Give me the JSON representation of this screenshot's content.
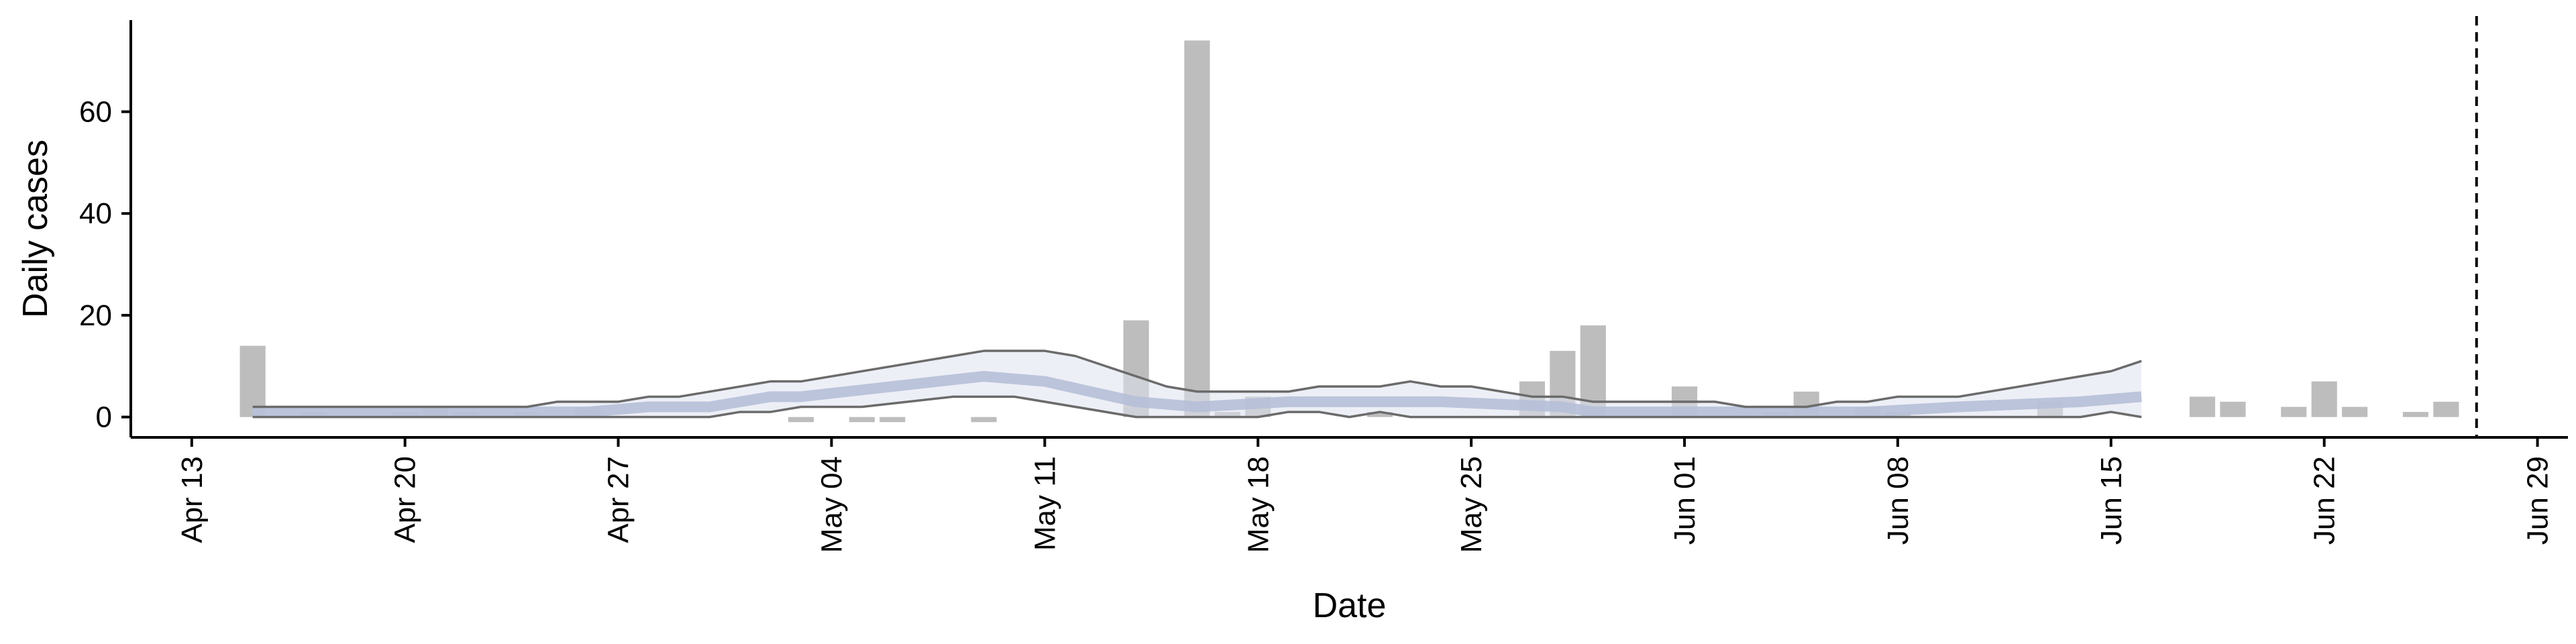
{
  "chart_data": {
    "type": "bar",
    "title": "",
    "xlabel": "Date",
    "ylabel": "Daily cases",
    "ylim": [
      -4,
      78
    ],
    "yticks": [
      0,
      20,
      40,
      60
    ],
    "xlim": [
      "2020-04-11",
      "2020-06-30"
    ],
    "xticks": [
      {
        "date": "2020-04-13",
        "label": "Apr 13"
      },
      {
        "date": "2020-04-20",
        "label": "Apr 20"
      },
      {
        "date": "2020-04-27",
        "label": "Apr 27"
      },
      {
        "date": "2020-05-04",
        "label": "May 04"
      },
      {
        "date": "2020-05-11",
        "label": "May 11"
      },
      {
        "date": "2020-05-18",
        "label": "May 18"
      },
      {
        "date": "2020-05-25",
        "label": "May 25"
      },
      {
        "date": "2020-06-01",
        "label": "Jun 01"
      },
      {
        "date": "2020-06-08",
        "label": "Jun 08"
      },
      {
        "date": "2020-06-15",
        "label": "Jun 15"
      },
      {
        "date": "2020-06-22",
        "label": "Jun 22"
      },
      {
        "date": "2020-06-29",
        "label": "Jun 29"
      }
    ],
    "bars": [
      {
        "x": "2020-04-15",
        "y": 14
      },
      {
        "x": "2020-04-17",
        "y": 1
      },
      {
        "x": "2020-04-20",
        "y": 1
      },
      {
        "x": "2020-04-21",
        "y": 2
      },
      {
        "x": "2020-04-22",
        "y": 1
      },
      {
        "x": "2020-04-24",
        "y": 1
      },
      {
        "x": "2020-04-26",
        "y": 2
      },
      {
        "x": "2020-05-03",
        "y": -1
      },
      {
        "x": "2020-05-05",
        "y": -1
      },
      {
        "x": "2020-05-06",
        "y": -1
      },
      {
        "x": "2020-05-09",
        "y": -1
      },
      {
        "x": "2020-05-14",
        "y": 19
      },
      {
        "x": "2020-05-16",
        "y": 74
      },
      {
        "x": "2020-05-17",
        "y": 1
      },
      {
        "x": "2020-05-18",
        "y": 4
      },
      {
        "x": "2020-05-22",
        "y": 1
      },
      {
        "x": "2020-05-27",
        "y": 1
      },
      {
        "x": "2020-05-27",
        "y": 7
      },
      {
        "x": "2020-05-28",
        "y": 13
      },
      {
        "x": "2020-05-29",
        "y": 18
      },
      {
        "x": "2020-06-01",
        "y": 6
      },
      {
        "x": "2020-06-04",
        "y": 1
      },
      {
        "x": "2020-06-05",
        "y": 5
      },
      {
        "x": "2020-06-07",
        "y": 2
      },
      {
        "x": "2020-06-08",
        "y": 1
      },
      {
        "x": "2020-06-13",
        "y": 3
      },
      {
        "x": "2020-06-18",
        "y": 4
      },
      {
        "x": "2020-06-19",
        "y": 3
      },
      {
        "x": "2020-06-21",
        "y": 2
      },
      {
        "x": "2020-06-22",
        "y": 7
      },
      {
        "x": "2020-06-23",
        "y": 2
      },
      {
        "x": "2020-06-25",
        "y": 1
      },
      {
        "x": "2020-06-26",
        "y": 3
      }
    ],
    "band_upper": [
      {
        "x": "2020-04-15",
        "y": 2
      },
      {
        "x": "2020-04-24",
        "y": 2
      },
      {
        "x": "2020-04-25",
        "y": 3
      },
      {
        "x": "2020-04-27",
        "y": 3
      },
      {
        "x": "2020-04-28",
        "y": 4
      },
      {
        "x": "2020-04-29",
        "y": 4
      },
      {
        "x": "2020-05-02",
        "y": 7
      },
      {
        "x": "2020-05-03",
        "y": 7
      },
      {
        "x": "2020-05-09",
        "y": 13
      },
      {
        "x": "2020-05-11",
        "y": 13
      },
      {
        "x": "2020-05-12",
        "y": 12
      },
      {
        "x": "2020-05-15",
        "y": 6
      },
      {
        "x": "2020-05-16",
        "y": 5
      },
      {
        "x": "2020-05-19",
        "y": 5
      },
      {
        "x": "2020-05-20",
        "y": 6
      },
      {
        "x": "2020-05-22",
        "y": 6
      },
      {
        "x": "2020-05-23",
        "y": 7
      },
      {
        "x": "2020-05-24",
        "y": 6
      },
      {
        "x": "2020-05-25",
        "y": 6
      },
      {
        "x": "2020-05-27",
        "y": 4
      },
      {
        "x": "2020-05-28",
        "y": 4
      },
      {
        "x": "2020-05-29",
        "y": 3
      },
      {
        "x": "2020-06-02",
        "y": 3
      },
      {
        "x": "2020-06-03",
        "y": 2
      },
      {
        "x": "2020-06-05",
        "y": 2
      },
      {
        "x": "2020-06-06",
        "y": 3
      },
      {
        "x": "2020-06-07",
        "y": 3
      },
      {
        "x": "2020-06-08",
        "y": 4
      },
      {
        "x": "2020-06-10",
        "y": 4
      },
      {
        "x": "2020-06-15",
        "y": 9
      },
      {
        "x": "2020-06-16",
        "y": 11
      }
    ],
    "band_lower": [
      {
        "x": "2020-04-15",
        "y": 0
      },
      {
        "x": "2020-04-30",
        "y": 0
      },
      {
        "x": "2020-05-01",
        "y": 1
      },
      {
        "x": "2020-05-02",
        "y": 1
      },
      {
        "x": "2020-05-03",
        "y": 2
      },
      {
        "x": "2020-05-05",
        "y": 2
      },
      {
        "x": "2020-05-08",
        "y": 4
      },
      {
        "x": "2020-05-10",
        "y": 4
      },
      {
        "x": "2020-05-14",
        "y": 0
      },
      {
        "x": "2020-05-18",
        "y": 0
      },
      {
        "x": "2020-05-19",
        "y": 1
      },
      {
        "x": "2020-05-20",
        "y": 1
      },
      {
        "x": "2020-05-21",
        "y": 0
      },
      {
        "x": "2020-05-22",
        "y": 1
      },
      {
        "x": "2020-05-23",
        "y": 0
      },
      {
        "x": "2020-06-14",
        "y": 0
      },
      {
        "x": "2020-06-15",
        "y": 1
      },
      {
        "x": "2020-06-16",
        "y": 0
      }
    ],
    "median": [
      {
        "x": "2020-04-15",
        "y": 1
      },
      {
        "x": "2020-04-26",
        "y": 1
      },
      {
        "x": "2020-04-28",
        "y": 2
      },
      {
        "x": "2020-04-30",
        "y": 2
      },
      {
        "x": "2020-05-02",
        "y": 4
      },
      {
        "x": "2020-05-03",
        "y": 4
      },
      {
        "x": "2020-05-09",
        "y": 8
      },
      {
        "x": "2020-05-11",
        "y": 7
      },
      {
        "x": "2020-05-14",
        "y": 3
      },
      {
        "x": "2020-05-16",
        "y": 2
      },
      {
        "x": "2020-05-19",
        "y": 3
      },
      {
        "x": "2020-05-24",
        "y": 3
      },
      {
        "x": "2020-05-28",
        "y": 2
      },
      {
        "x": "2020-05-29",
        "y": 1
      },
      {
        "x": "2020-06-07",
        "y": 1
      },
      {
        "x": "2020-06-10",
        "y": 2
      },
      {
        "x": "2020-06-14",
        "y": 3
      },
      {
        "x": "2020-06-16",
        "y": 4
      }
    ],
    "vline_date": "2020-06-27",
    "colors": {
      "bar": "#bdbdbd",
      "band_fill": "#dee2ef",
      "band_line": "#6b6b6b",
      "median": "#b5bfd8",
      "axis": "#000000"
    }
  }
}
